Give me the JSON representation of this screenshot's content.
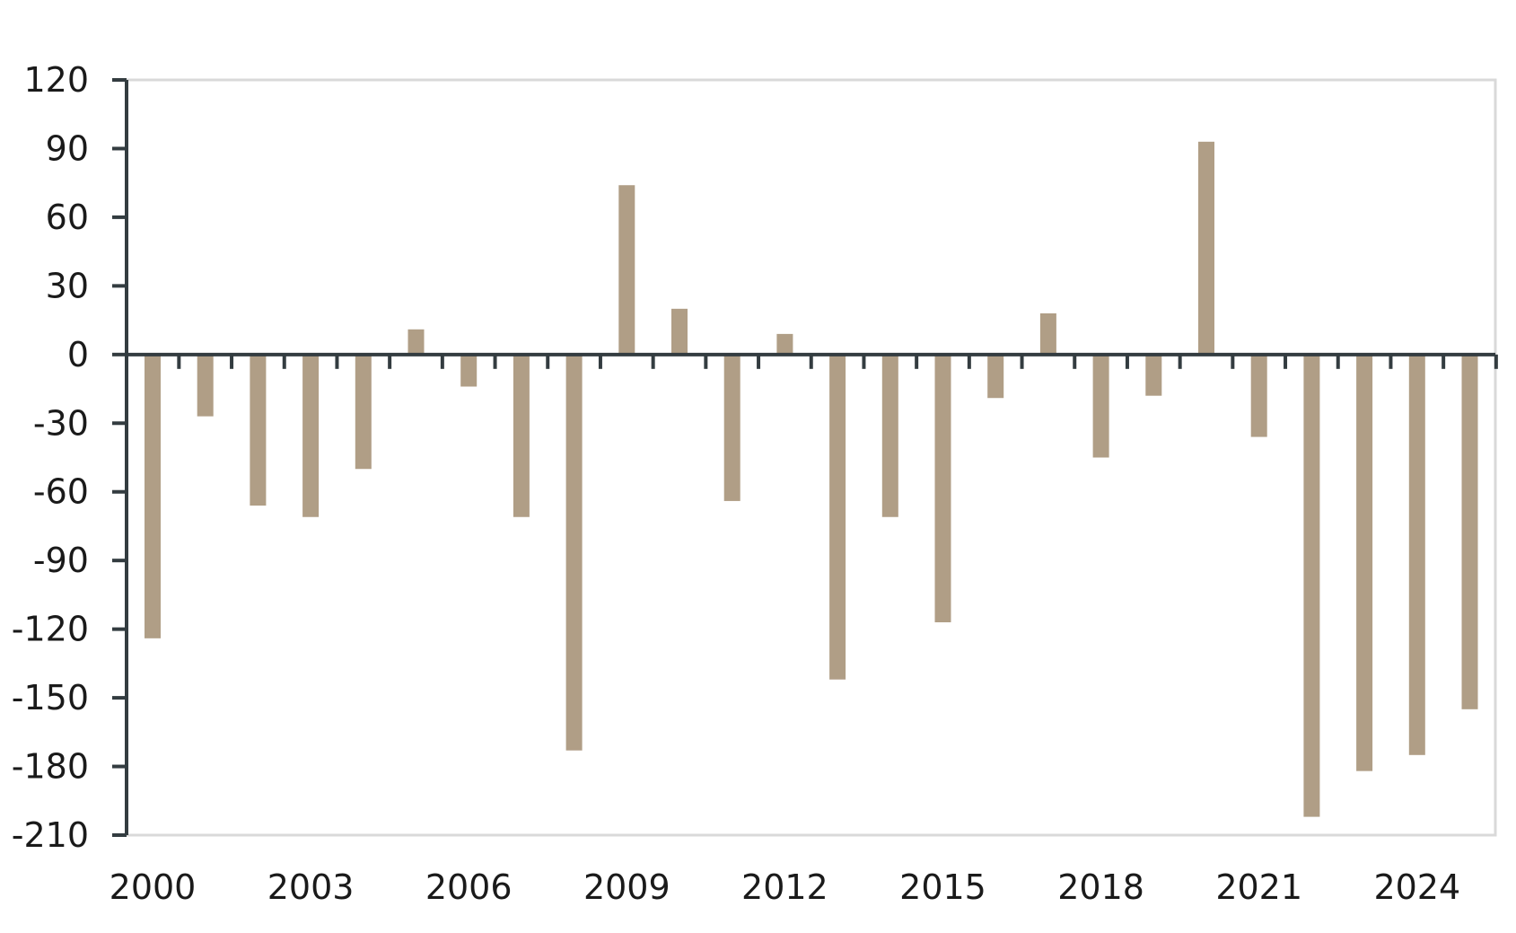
{
  "chart_data": {
    "type": "bar",
    "title": "",
    "xlabel": "",
    "ylabel": "",
    "ylim": [
      -210,
      120
    ],
    "yticks": [
      120,
      90,
      60,
      30,
      0,
      -30,
      -60,
      -90,
      -120,
      -150,
      -180,
      -210
    ],
    "y_tick_labels": [
      "120",
      "90",
      "60",
      "30",
      "0",
      "-30",
      "-60",
      "-90",
      "-120",
      "-150",
      "-180",
      "-210"
    ],
    "x_tick_labels": [
      "2000",
      "2003",
      "2006",
      "2009",
      "2012",
      "2015",
      "2018",
      "2021",
      "2024"
    ],
    "categories": [
      "2000",
      "2001",
      "2002",
      "2003",
      "2004",
      "2005",
      "2006",
      "2007",
      "2008",
      "2009",
      "2010",
      "2011",
      "2012",
      "2013",
      "2014",
      "2015",
      "2016",
      "2017",
      "2018",
      "2019",
      "2020",
      "2021",
      "2022",
      "2023",
      "2024",
      "2025"
    ],
    "values": [
      -124,
      -27,
      -66,
      -71,
      -50,
      11,
      -14,
      -71,
      -173,
      74,
      20,
      -64,
      9,
      -142,
      -71,
      -117,
      -19,
      18,
      -45,
      -18,
      93,
      -36,
      -202,
      -182,
      -175,
      -155
    ],
    "bar_color": "#b09e86",
    "axis_color": "#333c40",
    "frame_color": "#d9d9d9",
    "grid": false,
    "legend": "none"
  }
}
